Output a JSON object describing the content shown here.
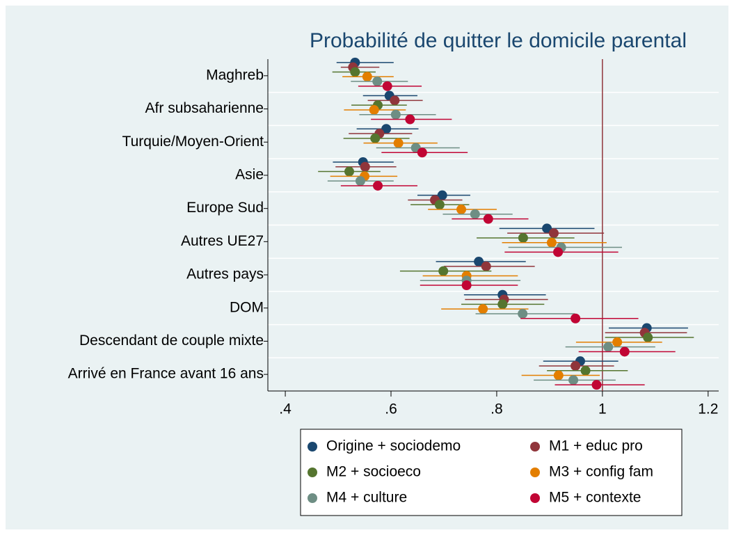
{
  "chart_data": {
    "type": "coefplot",
    "title": "Probabilité de quitter le domicile parental",
    "categories": [
      "Maghreb",
      "Afr subsaharienne",
      "Turquie/Moyen-Orient",
      "Asie",
      "Europe Sud",
      "Autres UE27",
      "Autres pays",
      "DOM",
      "Descendant de couple mixte",
      "Arrivé en France avant 16 ans"
    ],
    "xlim": [
      0.367,
      1.22
    ],
    "xticks": [
      {
        "value": 0.4,
        "label": ".4"
      },
      {
        "value": 0.6,
        "label": ".6"
      },
      {
        "value": 0.8,
        "label": ".8"
      },
      1,
      1.2
    ],
    "xline": 1,
    "xline_color": "#90353b",
    "grid": true,
    "series": [
      {
        "name": "Origine + sociodemo",
        "color": "#1a476f",
        "values": [
          0.532,
          0.597,
          0.591,
          0.547,
          0.697,
          0.895,
          0.766,
          0.811,
          1.084,
          0.958
        ],
        "low": [
          0.497,
          0.547,
          0.535,
          0.49,
          0.65,
          0.805,
          0.685,
          0.738,
          1.012,
          0.888
        ],
        "high": [
          0.605,
          0.65,
          0.652,
          0.605,
          0.75,
          0.985,
          0.855,
          0.893,
          1.162,
          1.03
        ]
      },
      {
        "name": "M1 + educ pro",
        "color": "#90353b",
        "values": [
          0.528,
          0.607,
          0.578,
          0.551,
          0.683,
          0.908,
          0.78,
          0.814,
          1.08,
          0.949
        ],
        "low": [
          0.505,
          0.556,
          0.52,
          0.495,
          0.632,
          0.82,
          0.7,
          0.74,
          1.005,
          0.88
        ],
        "high": [
          0.578,
          0.66,
          0.64,
          0.61,
          0.735,
          1.003,
          0.872,
          0.897,
          1.16,
          1.022
        ]
      },
      {
        "name": "M2 + socioeco",
        "color": "#55752f",
        "values": [
          0.532,
          0.575,
          0.57,
          0.521,
          0.692,
          0.85,
          0.699,
          0.811,
          1.086,
          0.968
        ],
        "low": [
          0.489,
          0.525,
          0.51,
          0.462,
          0.637,
          0.762,
          0.617,
          0.733,
          1.005,
          0.895
        ],
        "high": [
          0.571,
          0.63,
          0.635,
          0.58,
          0.748,
          0.947,
          0.79,
          0.89,
          1.173,
          1.048
        ]
      },
      {
        "name": "M3 + config fam",
        "color": "#e37e00",
        "values": [
          0.555,
          0.568,
          0.614,
          0.55,
          0.733,
          0.904,
          0.743,
          0.774,
          1.028,
          0.917
        ],
        "low": [
          0.508,
          0.511,
          0.548,
          0.485,
          0.67,
          0.81,
          0.66,
          0.695,
          0.95,
          0.847
        ],
        "high": [
          0.605,
          0.628,
          0.688,
          0.612,
          0.8,
          1.008,
          0.84,
          0.86,
          1.113,
          0.995
        ]
      },
      {
        "name": "M4 + culture",
        "color": "#6e8e84",
        "values": [
          0.574,
          0.609,
          0.647,
          0.542,
          0.759,
          0.922,
          0.743,
          0.849,
          1.011,
          0.945
        ],
        "low": [
          0.524,
          0.54,
          0.572,
          0.48,
          0.698,
          0.822,
          0.655,
          0.76,
          0.93,
          0.87
        ],
        "high": [
          0.632,
          0.685,
          0.73,
          0.605,
          0.83,
          1.037,
          0.845,
          0.948,
          1.1,
          1.025
        ]
      },
      {
        "name": "M5 + contexte",
        "color": "#c10534",
        "values": [
          0.593,
          0.636,
          0.659,
          0.575,
          0.784,
          0.916,
          0.743,
          0.949,
          1.042,
          0.989
        ],
        "low": [
          0.538,
          0.562,
          0.582,
          0.505,
          0.715,
          0.815,
          0.655,
          0.845,
          0.955,
          0.91
        ],
        "high": [
          0.658,
          0.715,
          0.745,
          0.65,
          0.86,
          1.03,
          0.84,
          1.068,
          1.138,
          1.08
        ]
      }
    ]
  }
}
